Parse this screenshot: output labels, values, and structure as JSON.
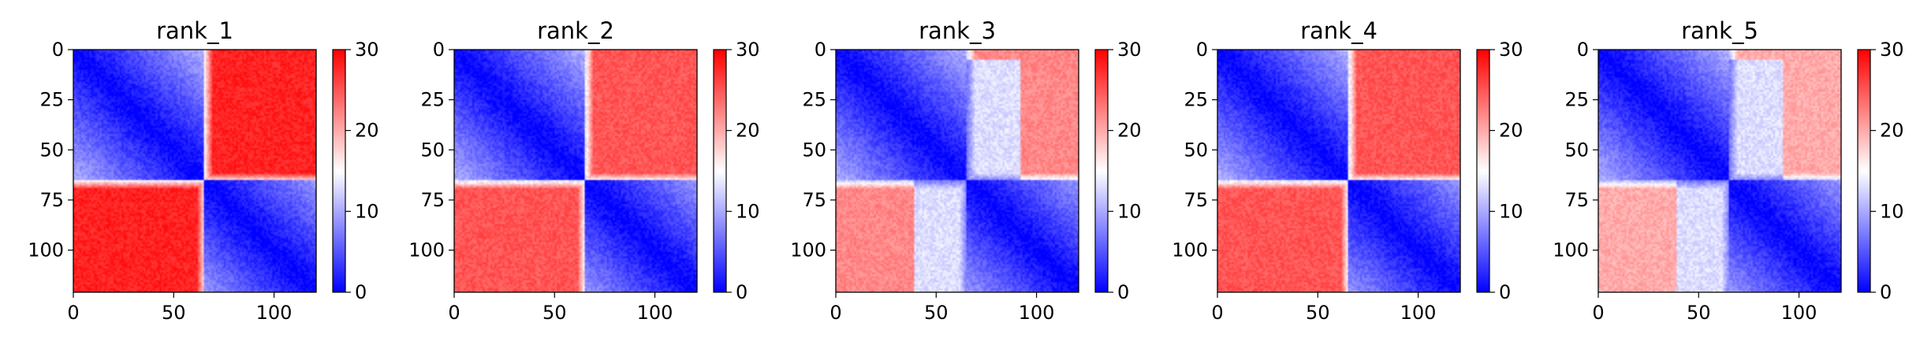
{
  "chart_data": [
    {
      "type": "heatmap",
      "title": "rank_1",
      "xlim": [
        0,
        121
      ],
      "ylim": [
        121,
        0
      ],
      "xticks": [
        0,
        50,
        100
      ],
      "yticks": [
        0,
        25,
        50,
        75,
        100
      ],
      "colorbar": {
        "min": 0,
        "max": 30,
        "ticks": [
          0,
          10,
          20,
          30
        ],
        "colormap": "bwr"
      },
      "domain_split": 65,
      "intra_domain_value": "0 on diagonal rising to ~12 at block corners",
      "inter_domain_value": 28,
      "interface_gradient": true
    },
    {
      "type": "heatmap",
      "title": "rank_2",
      "xlim": [
        0,
        121
      ],
      "ylim": [
        121,
        0
      ],
      "xticks": [
        0,
        50,
        100
      ],
      "yticks": [
        0,
        25,
        50,
        75,
        100
      ],
      "colorbar": {
        "min": 0,
        "max": 30,
        "ticks": [
          0,
          10,
          20,
          30
        ],
        "colormap": "bwr"
      },
      "domain_split": 65,
      "intra_domain_value": "0 on diagonal rising to ~12 at block corners",
      "inter_domain_value": 25,
      "interface_gradient": true
    },
    {
      "type": "heatmap",
      "title": "rank_3",
      "xlim": [
        0,
        121
      ],
      "ylim": [
        121,
        0
      ],
      "xticks": [
        0,
        50,
        100
      ],
      "yticks": [
        0,
        25,
        50,
        75,
        100
      ],
      "colorbar": {
        "min": 0,
        "max": 30,
        "ticks": [
          0,
          10,
          20,
          30
        ],
        "colormap": "bwr"
      },
      "domain_split": 65,
      "intra_domain_value": "0 on diagonal rising to ~12 at block corners",
      "inter_domain_value": 22,
      "uncertain_region_value": 13,
      "interface_gradient": true
    },
    {
      "type": "heatmap",
      "title": "rank_4",
      "xlim": [
        0,
        121
      ],
      "ylim": [
        121,
        0
      ],
      "xticks": [
        0,
        50,
        100
      ],
      "yticks": [
        0,
        25,
        50,
        75,
        100
      ],
      "colorbar": {
        "min": 0,
        "max": 30,
        "ticks": [
          0,
          10,
          20,
          30
        ],
        "colormap": "bwr"
      },
      "domain_split": 65,
      "intra_domain_value": "0 on diagonal rising to ~12 at block corners",
      "inter_domain_value": 25,
      "interface_gradient": true
    },
    {
      "type": "heatmap",
      "title": "rank_5",
      "xlim": [
        0,
        121
      ],
      "ylim": [
        121,
        0
      ],
      "xticks": [
        0,
        50,
        100
      ],
      "yticks": [
        0,
        25,
        50,
        75,
        100
      ],
      "colorbar": {
        "min": 0,
        "max": 30,
        "ticks": [
          0,
          10,
          20,
          30
        ],
        "colormap": "bwr"
      },
      "domain_split": 65,
      "intra_domain_value": "0 on diagonal rising to ~12 at block corners",
      "inter_domain_value": 20,
      "uncertain_region_value": 13,
      "interface_gradient": true
    }
  ],
  "colors": {
    "low": "#0000ff",
    "mid": "#ffffff",
    "high": "#ff0000"
  }
}
